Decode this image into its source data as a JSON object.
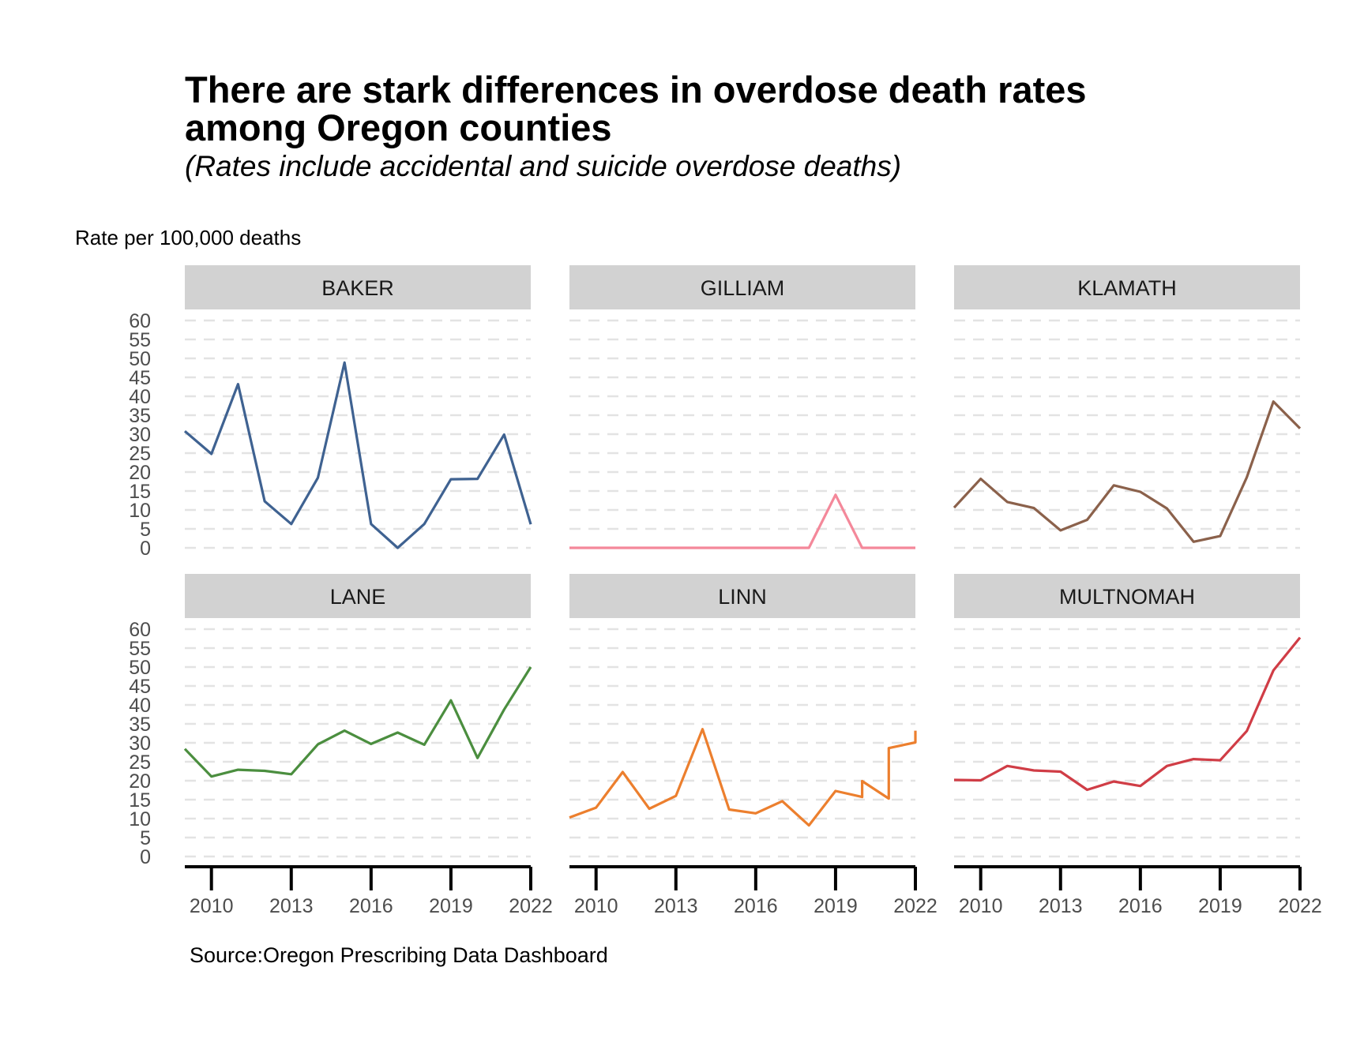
{
  "chart_data": {
    "type": "line",
    "title": "There are stark differences in overdose death rates\namong Oregon counties",
    "subtitle": "(Rates include accidental and suicide overdose deaths)",
    "ylabel": "Rate per 100,000 deaths",
    "xlabel": "",
    "source": "Source:Oregon Prescribing Data Dashboard",
    "ylim": [
      0,
      60
    ],
    "yticks": [
      0,
      5,
      10,
      15,
      20,
      25,
      30,
      35,
      40,
      45,
      50,
      55,
      60
    ],
    "xlim": [
      2009,
      2022
    ],
    "xticks": [
      2010,
      2013,
      2016,
      2019,
      2022
    ],
    "grid": "dashed horizontal",
    "facets": [
      {
        "name": "BAKER",
        "color": "#3f6291",
        "x": [
          2009,
          2010,
          2011,
          2012,
          2013,
          2014,
          2015,
          2016,
          2017,
          2018,
          2019,
          2020,
          2021,
          2022
        ],
        "y": [
          30.8,
          24.8,
          43.2,
          12.3,
          6.3,
          18.5,
          48.9,
          6.3,
          0,
          6.3,
          18.1,
          18.2,
          29.9,
          6.2
        ]
      },
      {
        "name": "GILLIAM",
        "color": "#f4889a",
        "x": [
          2009,
          2010,
          2011,
          2012,
          2013,
          2014,
          2015,
          2016,
          2017,
          2018,
          2019,
          2020,
          2021,
          2022
        ],
        "y": [
          0,
          0,
          0,
          0,
          0,
          0,
          0,
          0,
          0,
          0,
          14,
          0,
          0,
          0
        ]
      },
      {
        "name": "KLAMATH",
        "color": "#8b614b",
        "x": [
          2009,
          2010,
          2011,
          2012,
          2013,
          2014,
          2015,
          2016,
          2017,
          2018,
          2019,
          2020,
          2021,
          2022
        ],
        "y": [
          10.6,
          18.2,
          12.1,
          10.5,
          4.6,
          7.4,
          16.5,
          14.8,
          10.4,
          1.6,
          3.1,
          18.6,
          38.6,
          31.5
        ]
      },
      {
        "name": "LANE",
        "color": "#4b8e3f",
        "x": [
          2009,
          2010,
          2011,
          2012,
          2013,
          2014,
          2015,
          2016,
          2017,
          2018,
          2019,
          2020,
          2021,
          2022
        ],
        "y": [
          28.4,
          21.1,
          22.9,
          22.6,
          21.7,
          29.6,
          33.2,
          29.7,
          32.7,
          29.5,
          41.2,
          26,
          38.8,
          50
        ]
      },
      {
        "name": "LINN",
        "color": "#ec7f2e",
        "x": [
          2009,
          2010,
          2011,
          2012,
          2013,
          2014,
          2015,
          2016,
          2017,
          2018,
          2019,
          2020,
          2020,
          2021,
          2021,
          2022,
          2022
        ],
        "y": [
          10.3,
          12.9,
          22.3,
          12.6,
          16,
          33.6,
          12.4,
          11.4,
          14.6,
          8.2,
          17.3,
          15.7,
          19.9,
          15.3,
          28.6,
          30.1,
          33.2
        ]
      },
      {
        "name": "MULTNOMAH",
        "color": "#d03d46",
        "x": [
          2009,
          2010,
          2011,
          2012,
          2013,
          2014,
          2015,
          2016,
          2017,
          2018,
          2019,
          2020,
          2021,
          2022
        ],
        "y": [
          20.2,
          20.1,
          23.9,
          22.7,
          22.4,
          17.6,
          19.8,
          18.6,
          23.9,
          25.7,
          25.4,
          33.1,
          49.1,
          57.8
        ]
      }
    ]
  }
}
